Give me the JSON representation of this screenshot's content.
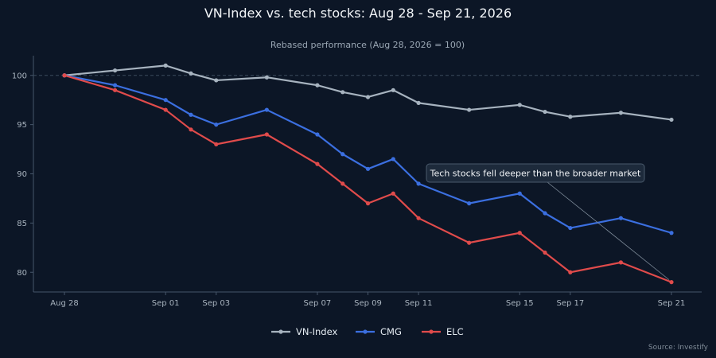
{
  "title": "VN-Index vs. tech stocks: Aug 28 - Sep 21, 2026",
  "subtitle": "Rebased performance (Aug 28, 2026 = 100)",
  "source": "Source: Investify",
  "colors": {
    "background": "#0c1626",
    "vnindex": "#a7b3bf",
    "cmg": "#3b6fe0",
    "elc": "#e04b4b",
    "gridline": "#3a4a5c",
    "axis": "#46566a"
  },
  "chart_data": {
    "type": "line",
    "x": [
      "Aug 28",
      "Aug 30",
      "Sep 01",
      "Sep 02",
      "Sep 03",
      "Sep 05",
      "Sep 07",
      "Sep 08",
      "Sep 09",
      "Sep 10",
      "Sep 11",
      "Sep 13",
      "Sep 15",
      "Sep 16",
      "Sep 17",
      "Sep 19",
      "Sep 21"
    ],
    "x_day_index": [
      0,
      2,
      4,
      5,
      6,
      8,
      10,
      11,
      12,
      13,
      14,
      16,
      18,
      19,
      20,
      22,
      24
    ],
    "x_ticks": [
      "Aug 28",
      "Sep 01",
      "Sep 03",
      "Sep 07",
      "Sep 09",
      "Sep 11",
      "Sep 15",
      "Sep 17",
      "Sep 21"
    ],
    "x_tick_day_index": [
      0,
      4,
      6,
      10,
      12,
      14,
      18,
      20,
      24
    ],
    "ylim": [
      78,
      102
    ],
    "y_ticks": [
      80,
      85,
      90,
      95,
      100
    ],
    "reference_line": 100,
    "series": [
      {
        "name": "VN-Index",
        "color": "#a7b3bf",
        "values": [
          100,
          100.5,
          101,
          100.2,
          99.5,
          99.8,
          99,
          98.3,
          97.8,
          98.5,
          97.2,
          96.5,
          97,
          96.3,
          95.8,
          96.2,
          95.5
        ]
      },
      {
        "name": "CMG",
        "color": "#3b6fe0",
        "values": [
          100,
          99,
          97.5,
          96,
          95,
          96.5,
          94,
          92,
          90.5,
          91.5,
          89,
          87,
          88,
          86,
          84.5,
          85.5,
          84
        ]
      },
      {
        "name": "ELC",
        "color": "#e04b4b",
        "values": [
          100,
          98.5,
          96.5,
          94.5,
          93,
          94,
          91,
          89,
          87,
          88,
          85.5,
          83,
          84,
          82,
          80,
          81,
          79
        ]
      }
    ],
    "annotation": {
      "text": "Tech stocks fell deeper than the broader market",
      "point_x": "Sep 21",
      "point_y": 79
    },
    "legend": "bottom-center",
    "grid": false
  }
}
